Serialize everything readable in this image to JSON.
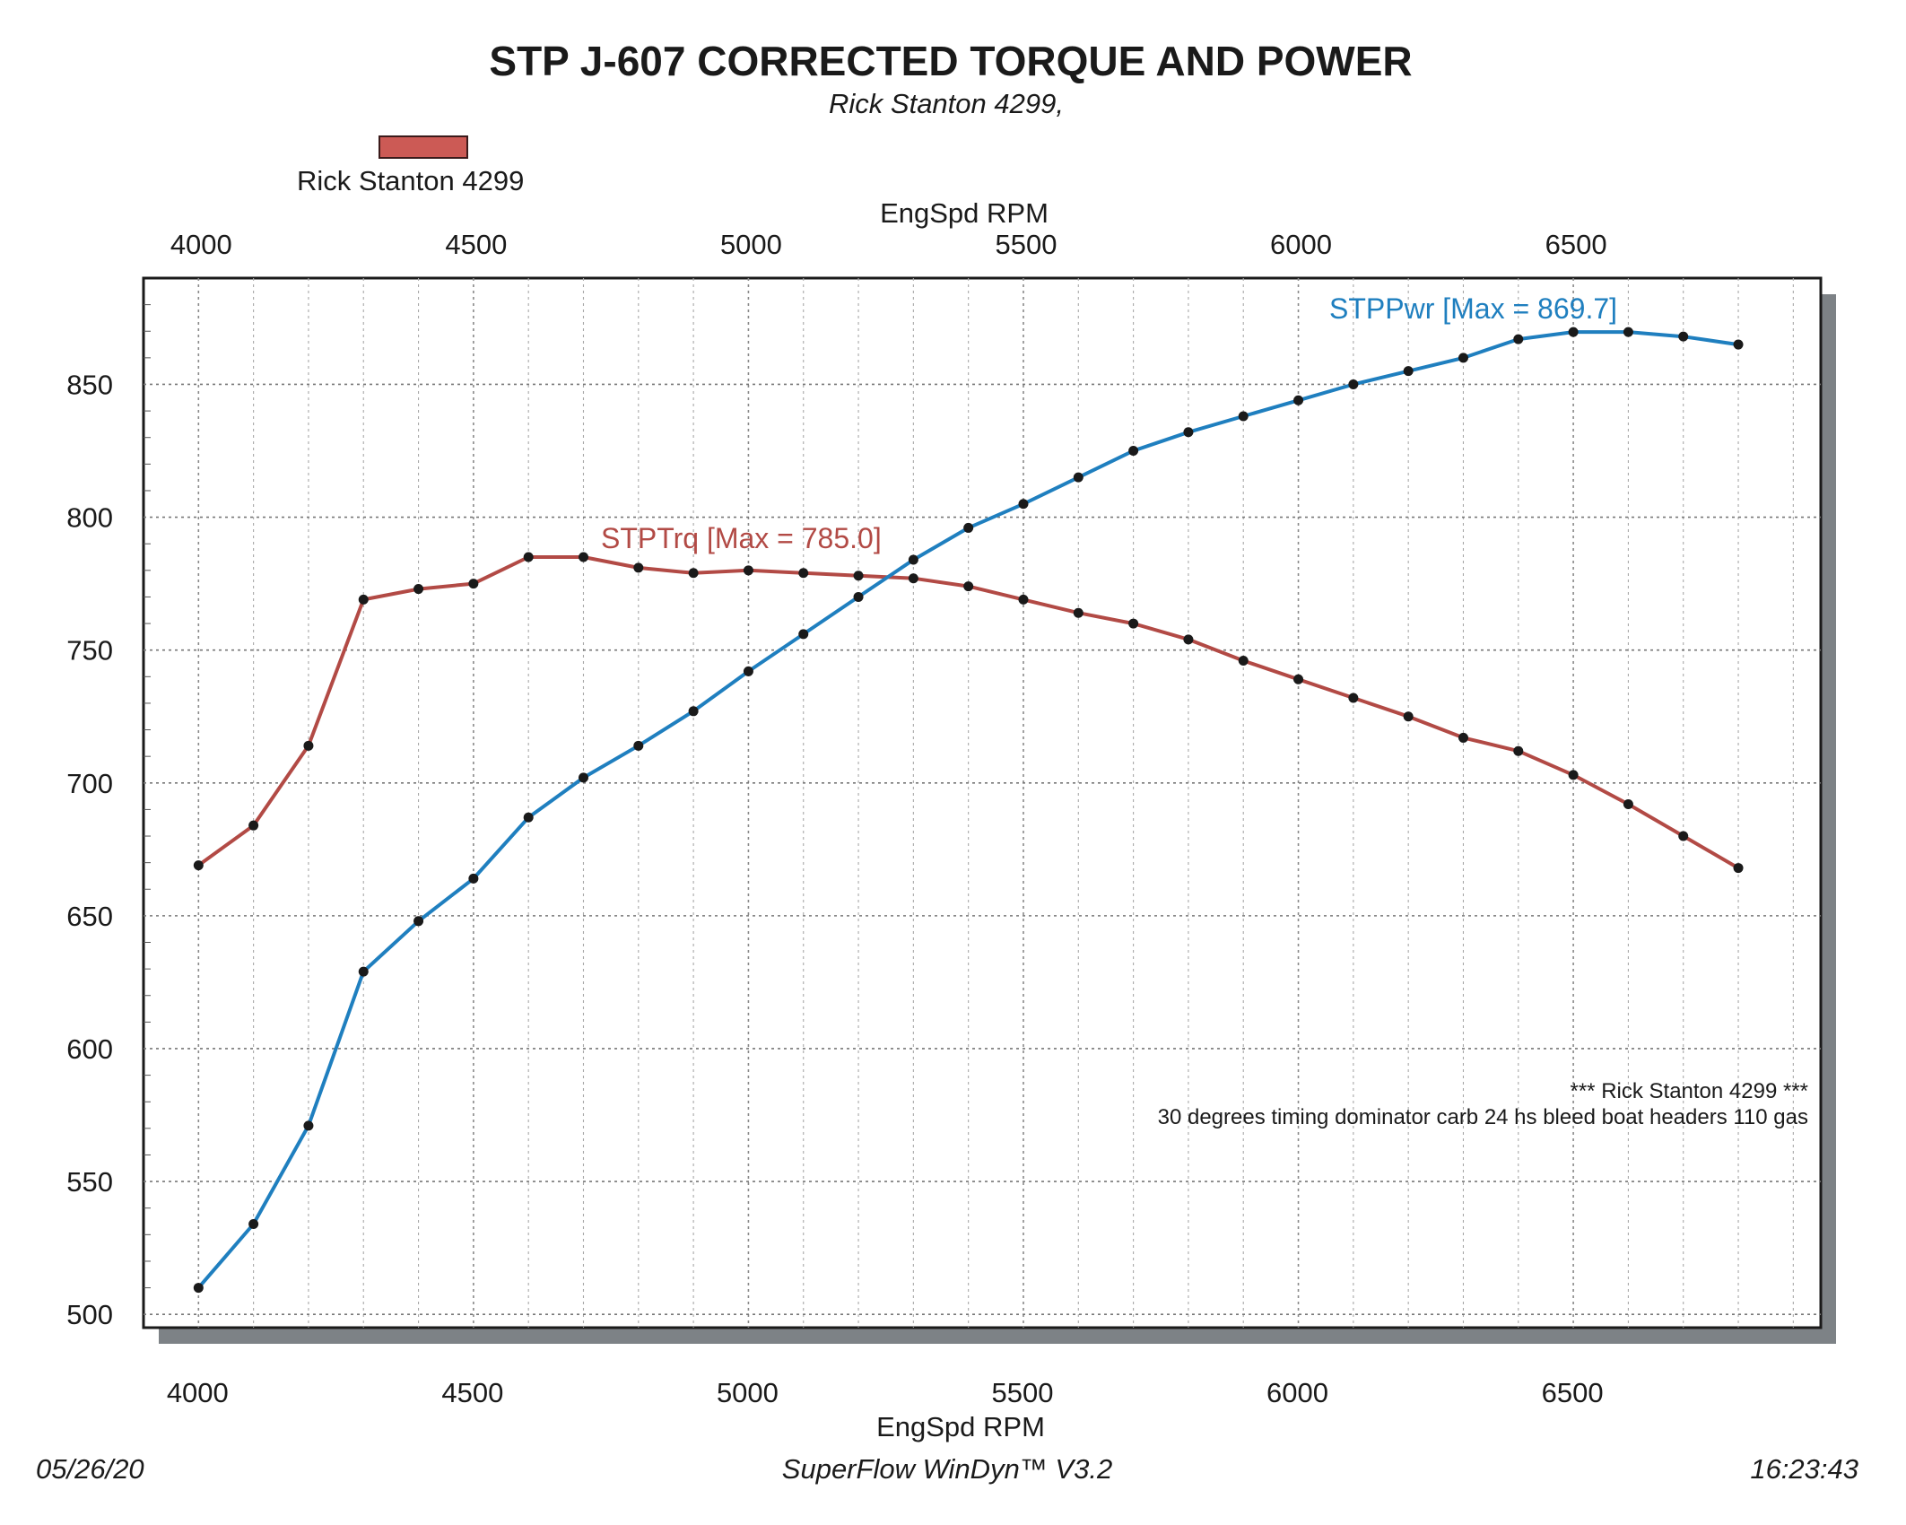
{
  "title": "STP J-607 CORRECTED TORQUE AND POWER",
  "subtitle": "Rick Stanton 4299,",
  "legend": {
    "label": "Rick Stanton 4299",
    "color": "#cc5a55"
  },
  "footer": {
    "date": "05/26/20",
    "software": "SuperFlow WinDyn™ V3.2",
    "time": "16:23:43"
  },
  "notes": {
    "line1": "*** Rick Stanton 4299 ***",
    "line2": "30 degrees timing dominator carb 24 hs bleed boat headers 110 gas"
  },
  "chart_data": {
    "type": "line",
    "xlabel": "EngSpd RPM",
    "xlim": [
      3900,
      6950
    ],
    "ylim": [
      495,
      890
    ],
    "x_ticks": [
      4000,
      4500,
      5000,
      5500,
      6000,
      6500
    ],
    "y_ticks": [
      500,
      550,
      600,
      650,
      700,
      750,
      800,
      850
    ],
    "grid": true,
    "x": [
      4000,
      4100,
      4200,
      4300,
      4400,
      4500,
      4600,
      4700,
      4800,
      4900,
      5000,
      5100,
      5200,
      5300,
      5400,
      5500,
      5600,
      5700,
      5800,
      5900,
      6000,
      6100,
      6200,
      6300,
      6400,
      6500,
      6600,
      6700,
      6800
    ],
    "series": [
      {
        "name": "STPTrq",
        "label": "STPTrq [Max = 785.0]",
        "color": "#b24a45",
        "values": [
          669,
          684,
          714,
          769,
          773,
          775,
          785,
          785,
          781,
          779,
          780,
          779,
          778,
          777,
          774,
          769,
          764,
          760,
          754,
          746,
          739,
          732,
          725,
          717,
          712,
          703,
          692,
          680,
          668
        ]
      },
      {
        "name": "STPPwr",
        "label": "STPPwr [Max = 869.7]",
        "color": "#1f7fbf",
        "values": [
          510,
          534,
          571,
          629,
          648,
          664,
          687,
          702,
          714,
          727,
          742,
          756,
          770,
          784,
          796,
          805,
          815,
          825,
          832,
          838,
          844,
          850,
          855,
          860,
          867,
          869.7,
          869.7,
          868,
          865
        ]
      }
    ]
  }
}
